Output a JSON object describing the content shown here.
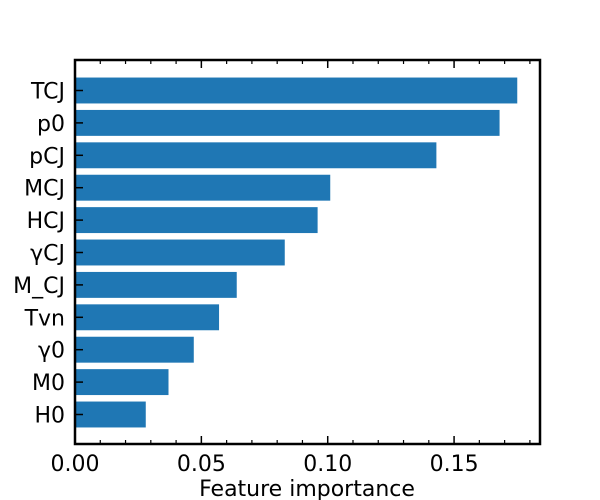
{
  "chart_data": {
    "type": "bar",
    "orientation": "horizontal",
    "categories": [
      "TCJ",
      "p0",
      "pCJ",
      "MCJ",
      "HCJ",
      "γCJ",
      "M_CJ",
      "Tvn",
      "γ0",
      "M0",
      "H0"
    ],
    "values": [
      0.175,
      0.168,
      0.143,
      0.101,
      0.096,
      0.083,
      0.064,
      0.057,
      0.047,
      0.037,
      0.028
    ],
    "xlabel": "Feature importance",
    "ylabel": "",
    "title": "",
    "xlim": [
      0,
      0.184
    ],
    "xticks": [
      0.0,
      0.05,
      0.1,
      0.15
    ],
    "xtick_labels": [
      "0.00",
      "0.05",
      "0.10",
      "0.15"
    ],
    "bar_color": "#1f77b4",
    "grid": false,
    "legend": "none"
  }
}
